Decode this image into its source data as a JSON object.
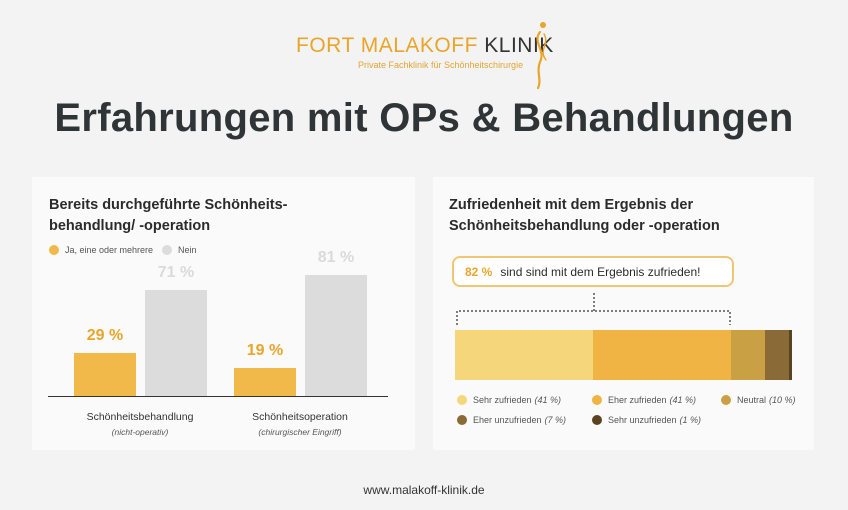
{
  "logo": {
    "name_main": "FORT MALAKOFF",
    "name_accent": "KLINIK",
    "subtitle": "Private Fachklinik für Schönheitschirurgie"
  },
  "headline": "Erfahrungen mit OPs & Behandlungen",
  "left_card": {
    "title_line1": "Bereits durchgeführte Schönheits-",
    "title_line2": "behandlung/ -operation"
  },
  "right_card": {
    "title_line1": "Zufriedenheit mit dem Ergebnis der",
    "title_line2": "Schönheitsbehandlung oder -operation",
    "callout_pct": "82 %",
    "callout_text": "sind sind mit dem Ergebnis zufrieden!"
  },
  "footer": "www.malakoff-klinik.de",
  "colors": {
    "orange": "#f1b94a",
    "grey": "#dcdcdc",
    "axis": "#333333"
  },
  "chart_data": [
    {
      "type": "bar",
      "categories": [
        "Schönheitsbehandlung",
        "Schönheitsoperation"
      ],
      "category_subtitles": [
        "(nicht-operativ)",
        "(chirurgischer Eingriff)"
      ],
      "series": [
        {
          "name": "Ja, eine oder mehrere",
          "values": [
            29,
            19
          ],
          "labels": [
            "29 %",
            "19 %"
          ],
          "color": "#f1b94a",
          "label_color": "#e9a52a"
        },
        {
          "name": "Nein",
          "values": [
            71,
            81
          ],
          "labels": [
            "71 %",
            "81 %"
          ],
          "color": "#dcdcdc",
          "label_color": "#dadada"
        }
      ],
      "ylim": [
        0,
        100
      ],
      "legend": "top-left"
    },
    {
      "type": "bar",
      "stacked": true,
      "orientation": "horizontal",
      "segments": [
        {
          "name": "Sehr zufrieden",
          "value": 41,
          "label": "(41 %)",
          "color": "#f6d67a"
        },
        {
          "name": "Eher zufrieden",
          "value": 41,
          "label": "(41 %)",
          "color": "#efb444"
        },
        {
          "name": "Neutral",
          "value": 10,
          "label": "(10 %)",
          "color": "#c9a043"
        },
        {
          "name": "Eher unzufrieden",
          "value": 7,
          "label": "(7 %)",
          "color": "#8a6a36"
        },
        {
          "name": "Sehr unzufrieden",
          "value": 1,
          "label": "(1 %)",
          "color": "#5a4320"
        }
      ],
      "legend": "bottom"
    }
  ]
}
